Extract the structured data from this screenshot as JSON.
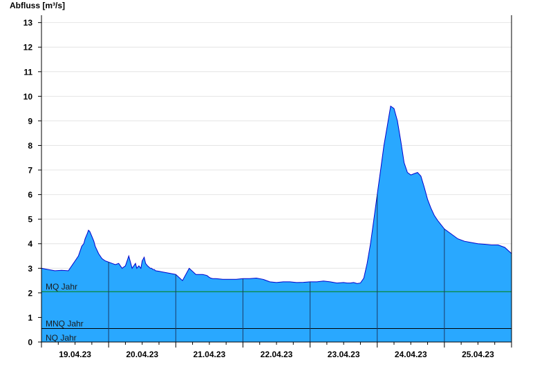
{
  "chart_data": {
    "type": "area",
    "ylabel": "Abfluss [m³/s]",
    "ylim": [
      0,
      13.3
    ],
    "yticks": [
      "0",
      "1",
      "2",
      "3",
      "4",
      "5",
      "6",
      "7",
      "8",
      "9",
      "10",
      "11",
      "12",
      "13"
    ],
    "xticks": [
      "19.04.23",
      "20.04.23",
      "21.04.23",
      "22.04.23",
      "23.04.23",
      "24.04.23",
      "25.04.23"
    ],
    "xlim_days": [
      0,
      7
    ],
    "grid": true,
    "colors": {
      "fill": "#29a8ff",
      "line": "#0000cc",
      "mq": "#008000",
      "mnq": "#000000",
      "nq": "#000000"
    },
    "reference_lines": [
      {
        "label": "MQ Jahr",
        "value": 2.05
      },
      {
        "label": "MNQ Jahr",
        "value": 0.55
      },
      {
        "label": "NQ Jahr",
        "value": 0.0
      }
    ],
    "series": [
      {
        "x": [
          0.0,
          0.1,
          0.2,
          0.3,
          0.4,
          0.5,
          0.55,
          0.6,
          0.63,
          0.65,
          0.68,
          0.7,
          0.72,
          0.75,
          0.78,
          0.8,
          0.85,
          0.9,
          0.95,
          1.0,
          1.05,
          1.1,
          1.15,
          1.2,
          1.25,
          1.3,
          1.35,
          1.4,
          1.42,
          1.45,
          1.48,
          1.5,
          1.53,
          1.55,
          1.58,
          1.6,
          1.62,
          1.64,
          1.66,
          1.68,
          1.7,
          1.75,
          1.8,
          1.9,
          2.0,
          2.1,
          2.2,
          2.3,
          2.4,
          2.45,
          2.47,
          2.49,
          2.52,
          2.55,
          2.6,
          2.7,
          2.8,
          2.9,
          3.0,
          3.1,
          3.2,
          3.3,
          3.4,
          3.5,
          3.6,
          3.7,
          3.8,
          3.9,
          4.0,
          4.1,
          4.2,
          4.3,
          4.4,
          4.5,
          4.55,
          4.6,
          4.65,
          4.7,
          4.75,
          4.8,
          4.85,
          4.9,
          4.95,
          5.0,
          5.05,
          5.1,
          5.15,
          5.2,
          5.25,
          5.3,
          5.35,
          5.4,
          5.45,
          5.5,
          5.55,
          5.6,
          5.65,
          5.7,
          5.75,
          5.8,
          5.85,
          5.9,
          6.0,
          6.1,
          6.2,
          6.3,
          6.4,
          6.5,
          6.6,
          6.7,
          6.8,
          6.9,
          7.0
        ],
        "y": [
          3.0,
          2.95,
          2.9,
          2.92,
          2.9,
          3.3,
          3.5,
          3.9,
          4.0,
          4.2,
          4.4,
          4.55,
          4.5,
          4.3,
          4.1,
          3.9,
          3.6,
          3.4,
          3.3,
          3.25,
          3.2,
          3.15,
          3.2,
          3.0,
          3.1,
          3.5,
          3.0,
          3.2,
          3.0,
          3.1,
          3.0,
          3.3,
          3.45,
          3.2,
          3.1,
          3.05,
          3.0,
          3.0,
          2.95,
          2.95,
          2.9,
          2.88,
          2.85,
          2.8,
          2.75,
          2.5,
          3.0,
          2.75,
          2.75,
          2.72,
          2.7,
          2.65,
          2.6,
          2.58,
          2.58,
          2.55,
          2.55,
          2.55,
          2.58,
          2.58,
          2.6,
          2.55,
          2.45,
          2.42,
          2.45,
          2.45,
          2.42,
          2.43,
          2.45,
          2.45,
          2.48,
          2.45,
          2.4,
          2.42,
          2.4,
          2.4,
          2.42,
          2.38,
          2.4,
          2.6,
          3.2,
          4.0,
          5.0,
          6.0,
          7.0,
          8.0,
          8.8,
          9.6,
          9.5,
          9.0,
          8.2,
          7.3,
          6.9,
          6.8,
          6.85,
          6.9,
          6.75,
          6.3,
          5.8,
          5.45,
          5.15,
          4.95,
          4.6,
          4.4,
          4.2,
          4.1,
          4.05,
          4.0,
          3.98,
          3.95,
          3.95,
          3.85,
          3.6
        ]
      }
    ]
  }
}
